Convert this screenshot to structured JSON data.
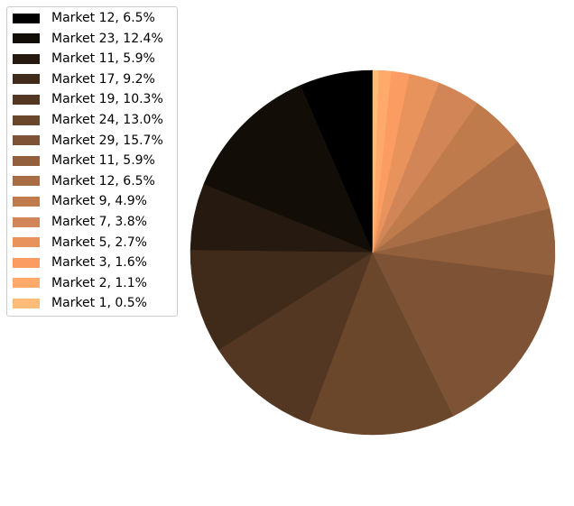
{
  "chart_data": {
    "type": "pie",
    "start_angle_deg": 90,
    "direction": "counterclockwise",
    "legend_placement": "top-left",
    "slices": [
      {
        "label": "Market 12, 6.5%",
        "value": 6.5,
        "color": "#000000"
      },
      {
        "label": "Market 23, 12.4%",
        "value": 12.4,
        "color": "#130d08"
      },
      {
        "label": "Market 11, 5.9%",
        "value": 5.9,
        "color": "#261a10"
      },
      {
        "label": "Market 17, 9.2%",
        "value": 9.2,
        "color": "#402a1a"
      },
      {
        "label": "Market 19, 10.3%",
        "value": 10.3,
        "color": "#533722"
      },
      {
        "label": "Market 24, 13.0%",
        "value": 13.0,
        "color": "#6a462b"
      },
      {
        "label": "Market 29, 15.7%",
        "value": 15.7,
        "color": "#7e5335"
      },
      {
        "label": "Market 11, 5.9%",
        "value": 5.9,
        "color": "#93603d"
      },
      {
        "label": "Market 12, 6.5%",
        "value": 6.5,
        "color": "#a86d45"
      },
      {
        "label": "Market 9, 4.9%",
        "value": 4.9,
        "color": "#c07b4d"
      },
      {
        "label": "Market 7, 3.8%",
        "value": 3.8,
        "color": "#d28657"
      },
      {
        "label": "Market 5, 2.7%",
        "value": 2.7,
        "color": "#e8925c"
      },
      {
        "label": "Market 3, 1.6%",
        "value": 1.6,
        "color": "#fb9d62"
      },
      {
        "label": "Market 2, 1.1%",
        "value": 1.1,
        "color": "#ffaa6b"
      },
      {
        "label": "Market 1, 0.5%",
        "value": 0.5,
        "color": "#ffbb78"
      }
    ]
  }
}
